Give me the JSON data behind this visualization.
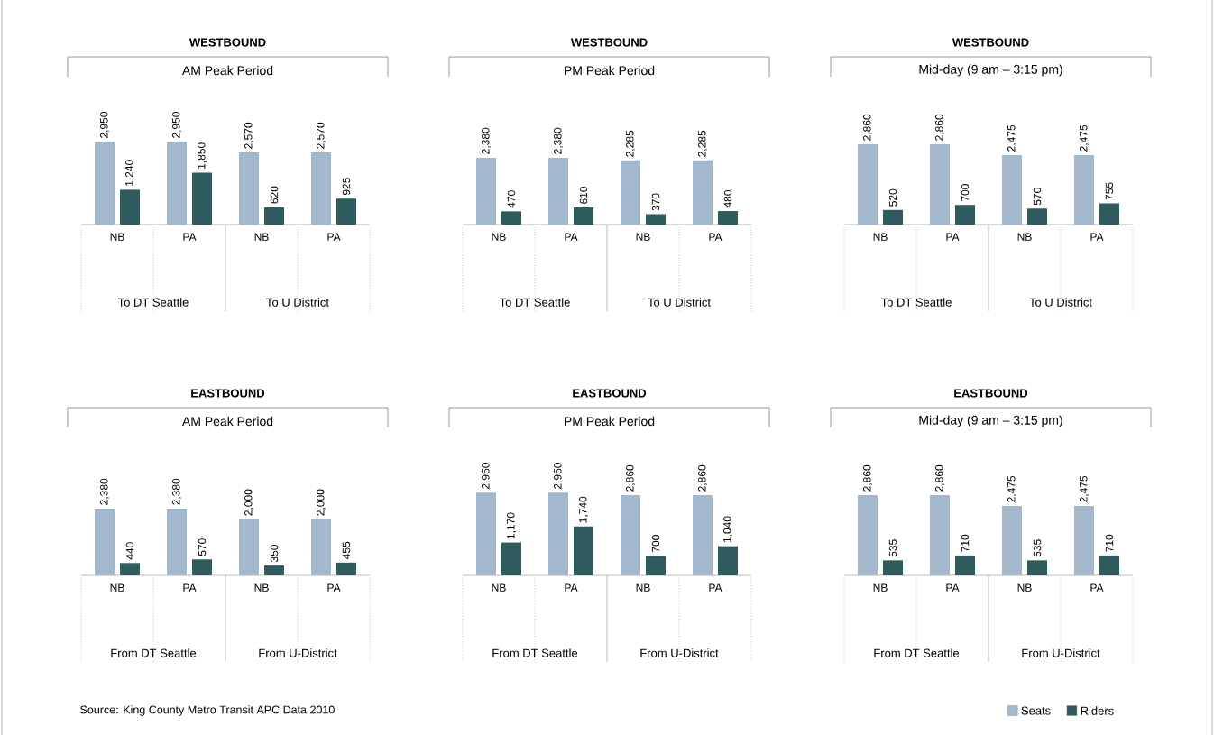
{
  "chart_data": [
    {
      "type": "bar",
      "title": "WESTBOUND",
      "subtitle": "AM Peak Period",
      "categories": [
        "NB",
        "PA",
        "NB",
        "PA"
      ],
      "annotations": [
        "To DT Seattle",
        "To U District",
        "Source: King County Metro Transit APC Data 2010"
      ],
      "series": [
        {
          "color": "#a3b8cc",
          "values": [
            2950,
            2950,
            2570,
            2570
          ],
          "value_labels": [
            "2,950",
            "2,950",
            "2,570",
            "2,570"
          ]
        },
        {
          "color": "#2f5a5e",
          "values": [
            1240,
            1850,
            620,
            925
          ],
          "value_labels": [
            "1,240",
            "1,850",
            "620",
            "925"
          ]
        }
      ]
    },
    {
      "type": "bar",
      "title": "WESTBOUND",
      "subtitle": "PM Peak Period",
      "categories": [
        "NB",
        "PA",
        "NB",
        "PA"
      ],
      "annotations": [
        "To DT Seattle",
        "To U District"
      ],
      "series": [
        {
          "color": "#a3b8cc",
          "values": [
            2380,
            2380,
            2285,
            2285
          ],
          "value_labels": [
            "2,380",
            "2,380",
            "2,285",
            "2,285"
          ]
        },
        {
          "color": "#2f5a5e",
          "values": [
            470,
            610,
            370,
            480
          ],
          "value_labels": [
            "470",
            "610",
            "370",
            "480"
          ]
        }
      ]
    },
    {
      "type": "bar",
      "title": "WESTBOUND",
      "subtitle": "Mid-day (9 am – 3:15 pm)",
      "categories": [
        "NB",
        "PA",
        "NB",
        "PA"
      ],
      "annotations": [
        "To DT Seattle",
        "To U District"
      ],
      "series": [
        {
          "color": "#a3b8cc",
          "values": [
            2860,
            2860,
            2475,
            2475
          ],
          "value_labels": [
            "2,860",
            "2,860",
            "2,475",
            "2,475"
          ]
        },
        {
          "color": "#2f5a5e",
          "values": [
            520,
            700,
            570,
            755
          ],
          "value_labels": [
            "520",
            "700",
            "570",
            "755"
          ]
        }
      ]
    },
    {
      "type": "bar",
      "title": "EASTBOUND",
      "subtitle": "AM Peak Period",
      "categories": [
        "NB",
        "PA",
        "NB",
        "PA"
      ],
      "annotations": [
        "From DT Seattle",
        "From U-District"
      ],
      "series": [
        {
          "color": "#a3b8cc",
          "values": [
            2380,
            2380,
            2000,
            2000
          ],
          "value_labels": [
            "2,380",
            "2,380",
            "2,000",
            "2,000"
          ]
        },
        {
          "color": "#2f5a5e",
          "values": [
            440,
            570,
            350,
            455
          ],
          "value_labels": [
            "440",
            "570",
            "350",
            "455"
          ]
        }
      ]
    },
    {
      "type": "bar",
      "title": "EASTBOUND",
      "subtitle": "PM Peak Period",
      "categories": [
        "NB",
        "PA",
        "NB",
        "PA"
      ],
      "annotations": [
        "From DT Seattle",
        "From U-District"
      ],
      "series": [
        {
          "color": "#a3b8cc",
          "values": [
            2950,
            2950,
            2860,
            2860
          ],
          "value_labels": [
            "2,950",
            "2,950",
            "2,860",
            "2,860"
          ]
        },
        {
          "color": "#2f5a5e",
          "values": [
            1170,
            1740,
            700,
            1040
          ],
          "value_labels": [
            "1,170",
            "1,740",
            "700",
            "1,040"
          ]
        }
      ]
    },
    {
      "type": "bar",
      "title": "EASTBOUND",
      "subtitle": "Mid-day (9 am – 3:15 pm)",
      "categories": [
        "NB",
        "PA",
        "NB",
        "PA"
      ],
      "annotations": [
        "From DT Seattle",
        "From U-District"
      ],
      "legend": "bottom right",
      "series": [
        {
          "name": "Seats",
          "color": "#a3b8cc",
          "values": [
            2860,
            2860,
            2475,
            2475
          ],
          "value_labels": [
            "2,860",
            "2,860",
            "2,475",
            "2,475"
          ]
        },
        {
          "name": "Riders",
          "color": "#2f5a5e",
          "values": [
            535,
            710,
            535,
            710
          ],
          "value_labels": [
            "535",
            "710",
            "535",
            "710"
          ]
        }
      ]
    }
  ]
}
